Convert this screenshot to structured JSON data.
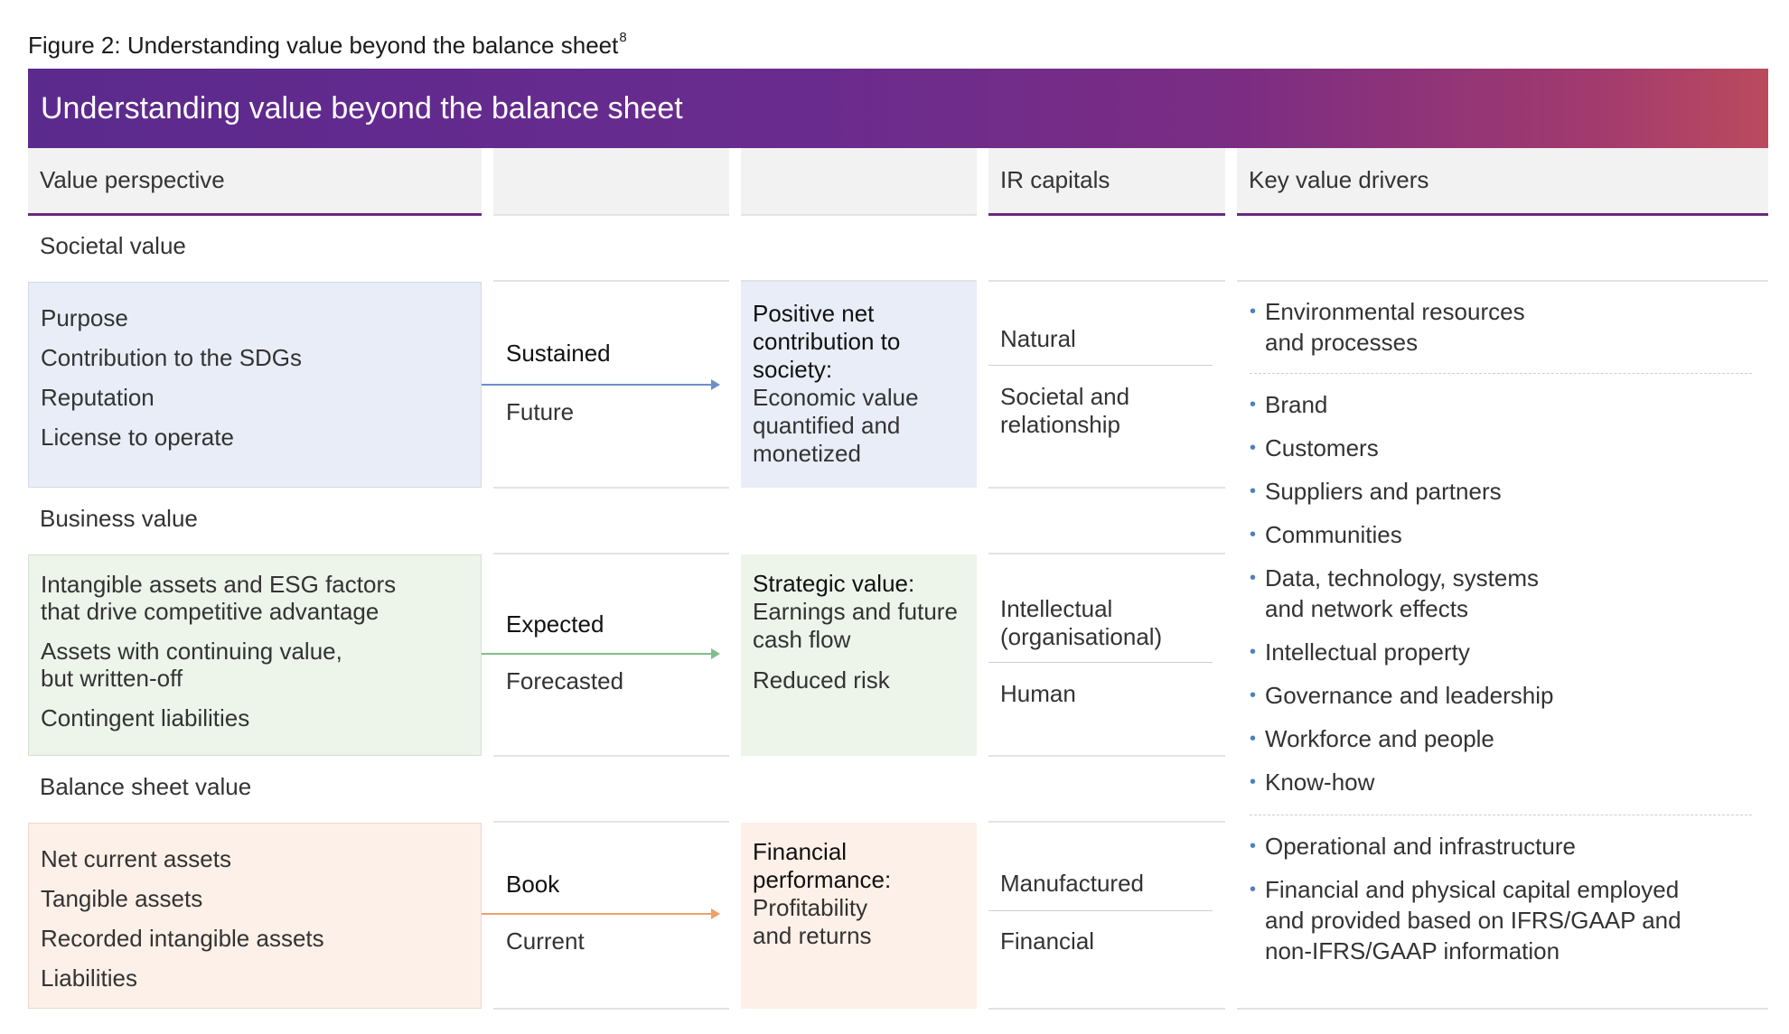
{
  "caption": "Figure 2: Understanding value beyond the balance sheet",
  "caption_sup": "8",
  "banner_title": "Understanding value beyond the balance sheet",
  "headers": {
    "value_perspective": "Value perspective",
    "ir_capitals": "IR capitals",
    "key_value_drivers": "Key value drivers"
  },
  "rows": [
    {
      "section": "Societal value",
      "items": [
        "Purpose",
        "Contribution to the SDGs",
        "Reputation",
        "License to operate"
      ],
      "horizon_bold": "Sustained",
      "horizon_sub": "Future",
      "outcome_bold": "Positive net contribution to society:",
      "outcome_lines": [
        "Economic value quantified and monetized"
      ],
      "capitals": [
        "Natural",
        "Societal and relationship"
      ],
      "color": "#e9edf7",
      "arrow_color": "#6c8fc9"
    },
    {
      "section": "Business value",
      "items": [
        "Intangible assets and ESG factors that drive competitive advantage",
        "Assets with continuing value, but written-off",
        "Contingent liabilities"
      ],
      "horizon_bold": "Expected",
      "horizon_sub": "Forecasted",
      "outcome_bold": "Strategic value:",
      "outcome_lines": [
        "Earnings and future cash flow",
        "Reduced risk"
      ],
      "capitals": [
        "Intellectual (organisational)",
        "Human"
      ],
      "color": "#edf4ea",
      "arrow_color": "#7fbf8a"
    },
    {
      "section": "Balance sheet value",
      "items": [
        "Net current assets",
        "Tangible assets",
        "Recorded intangible assets",
        "Liabilities"
      ],
      "horizon_bold": "Book",
      "horizon_sub": "Current",
      "outcome_bold": "Financial performance:",
      "outcome_lines": [
        "Profitability and returns"
      ],
      "capitals": [
        "Manufactured",
        "Financial"
      ],
      "color": "#fdf0e8",
      "arrow_color": "#f0a068"
    }
  ],
  "drivers": {
    "group1": [
      "Environmental resources and processes"
    ],
    "group2": [
      "Brand",
      "Customers",
      "Suppliers and partners",
      "Communities",
      "Data, technology, systems and network effects",
      "Intellectual property",
      "Governance and leadership",
      "Workforce and people",
      "Know-how"
    ],
    "group3": [
      "Operational and infrastructure",
      "Financial and physical capital employed and provided based on IFRS/GAAP and non-IFRS/GAAP information"
    ]
  }
}
